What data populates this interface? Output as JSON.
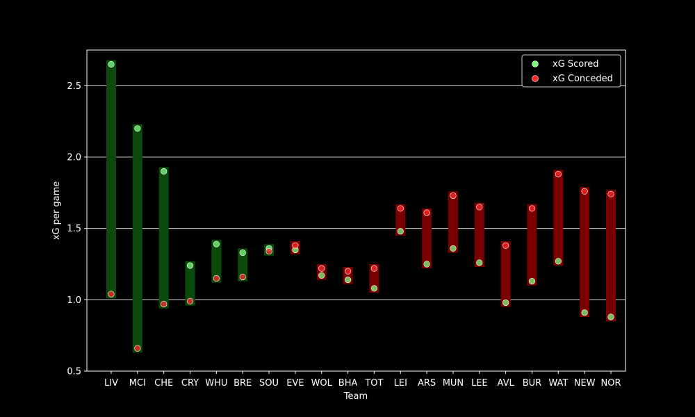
{
  "chart_data": {
    "type": "scatter",
    "xlabel": "Team",
    "ylabel": "xG per game",
    "ylim": [
      0.5,
      2.75
    ],
    "yticks": [
      0.5,
      1.0,
      1.5,
      2.0,
      2.5
    ],
    "ytick_labels": [
      "0.5",
      "1.0",
      "1.5",
      "2.0",
      "2.5"
    ],
    "grid": "horizontal",
    "legend_position": "top-right",
    "categories": [
      "LIV",
      "MCI",
      "CHE",
      "CRY",
      "WHU",
      "BRE",
      "SOU",
      "EVE",
      "WOL",
      "BHA",
      "TOT",
      "LEI",
      "ARS",
      "MUN",
      "LEE",
      "AVL",
      "BUR",
      "WAT",
      "NEW",
      "NOR"
    ],
    "series": [
      {
        "name": "xG Scored",
        "color": "#7CFC7C",
        "values": [
          2.65,
          2.2,
          1.9,
          1.24,
          1.39,
          1.33,
          1.36,
          1.35,
          1.17,
          1.14,
          1.08,
          1.48,
          1.25,
          1.36,
          1.26,
          0.98,
          1.13,
          1.27,
          0.91,
          0.88
        ]
      },
      {
        "name": "xG Conceded",
        "color": "#FF2A2A",
        "values": [
          1.04,
          0.66,
          0.97,
          0.99,
          1.15,
          1.16,
          1.34,
          1.38,
          1.22,
          1.2,
          1.22,
          1.64,
          1.61,
          1.73,
          1.65,
          1.38,
          1.64,
          1.88,
          1.76,
          1.74
        ]
      }
    ],
    "bar_colors": {
      "positive": "#0B4A0B",
      "negative": "#7A0000"
    }
  }
}
